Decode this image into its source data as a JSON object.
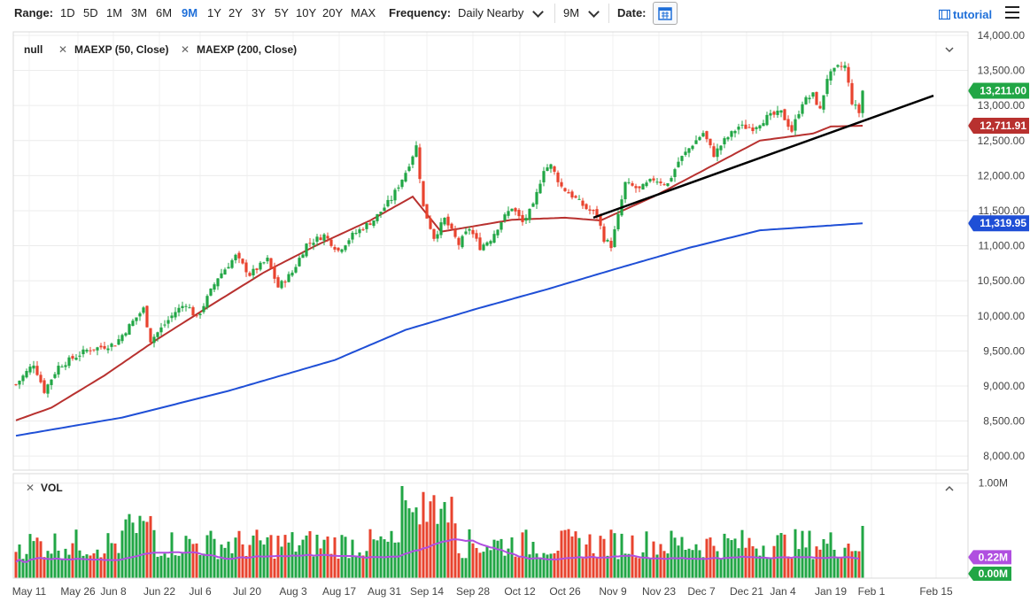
{
  "toolbar": {
    "range_label": "Range:",
    "ranges": [
      "1D",
      "5D",
      "1M",
      "3M",
      "6M",
      "9M",
      "1Y",
      "2Y",
      "3Y",
      "5Y",
      "10Y",
      "20Y",
      "MAX"
    ],
    "active_range": "9M",
    "frequency_label": "Frequency:",
    "frequency_value": "Daily Nearby",
    "period_value": "9M",
    "date_label": "Date:",
    "tutorial_label": "tutorial"
  },
  "legend": {
    "main": "null",
    "ma50": "MAEXP (50, Close)",
    "ma200": "MAEXP (200, Close)",
    "vol": "VOL"
  },
  "colors": {
    "up": "#21a645",
    "down": "#e8432e",
    "ma50": "#b8312f",
    "ma200": "#1f4fd6",
    "trend": "#000000",
    "vol_ma": "#b04fe0",
    "last_price_tag": "#21a645",
    "ma50_tag": "#b8312f",
    "ma200_tag": "#1f4fd6",
    "vol_tag": "#b04fe0",
    "vol_zero_tag": "#21a645"
  },
  "chart_data": {
    "type": "candlestick",
    "y_ticks": [
      "14,000.00",
      "13,500.00",
      "13,000.00",
      "12,500.00",
      "12,000.00",
      "11,500.00",
      "11,000.00",
      "10,500.00",
      "10,000.00",
      "9,500.00",
      "9,000.00",
      "8,500.00",
      "8,000.00"
    ],
    "ylim": [
      7800,
      14050
    ],
    "x_ticks": [
      "May 11",
      "May 26",
      "Jun 8",
      "Jun 22",
      "Jul 6",
      "Jul 20",
      "Aug 3",
      "Aug 17",
      "Aug 31",
      "Sep 14",
      "Sep 28",
      "Oct 12",
      "Oct 26",
      "Nov 9",
      "Nov 23",
      "Dec 7",
      "Dec 21",
      "Jan 4",
      "Jan 19",
      "Feb 1",
      "Feb 15"
    ],
    "price_path": [
      [
        0,
        9020
      ],
      [
        5,
        9320
      ],
      [
        8,
        8930
      ],
      [
        12,
        9280
      ],
      [
        20,
        9510
      ],
      [
        28,
        9600
      ],
      [
        33,
        9920
      ],
      [
        36,
        10100
      ],
      [
        38,
        9650
      ],
      [
        41,
        9820
      ],
      [
        45,
        10060
      ],
      [
        48,
        10180
      ],
      [
        51,
        9960
      ],
      [
        57,
        10550
      ],
      [
        62,
        10850
      ],
      [
        66,
        10590
      ],
      [
        71,
        10800
      ],
      [
        74,
        10410
      ],
      [
        78,
        10620
      ],
      [
        82,
        11020
      ],
      [
        87,
        11150
      ],
      [
        91,
        10930
      ],
      [
        95,
        11150
      ],
      [
        101,
        11370
      ],
      [
        106,
        11670
      ],
      [
        110,
        12050
      ],
      [
        113,
        12420
      ],
      [
        115,
        11550
      ],
      [
        118,
        11120
      ],
      [
        121,
        11380
      ],
      [
        125,
        11020
      ],
      [
        128,
        11250
      ],
      [
        131,
        10980
      ],
      [
        134,
        11100
      ],
      [
        137,
        11350
      ],
      [
        140,
        11550
      ],
      [
        143,
        11330
      ],
      [
        146,
        11560
      ],
      [
        149,
        12100
      ],
      [
        151,
        12140
      ],
      [
        154,
        11840
      ],
      [
        158,
        11670
      ],
      [
        161,
        11530
      ],
      [
        164,
        11440
      ],
      [
        166,
        11100
      ],
      [
        168,
        11000
      ],
      [
        170,
        11420
      ],
      [
        172,
        11890
      ],
      [
        176,
        11800
      ],
      [
        180,
        11950
      ],
      [
        184,
        11880
      ],
      [
        187,
        12200
      ],
      [
        191,
        12450
      ],
      [
        194,
        12610
      ],
      [
        197,
        12300
      ],
      [
        200,
        12500
      ],
      [
        204,
        12700
      ],
      [
        208,
        12680
      ],
      [
        212,
        12830
      ],
      [
        216,
        12900
      ],
      [
        219,
        12640
      ],
      [
        222,
        13050
      ],
      [
        225,
        13150
      ],
      [
        227,
        12930
      ],
      [
        229,
        13400
      ],
      [
        232,
        13540
      ],
      [
        234,
        13560
      ],
      [
        236,
        13050
      ],
      [
        238,
        12900
      ],
      [
        239,
        13211
      ]
    ],
    "last_close": 13211.0,
    "ma50_points": [
      [
        0,
        8510
      ],
      [
        10,
        8690
      ],
      [
        25,
        9150
      ],
      [
        40,
        9670
      ],
      [
        55,
        10150
      ],
      [
        70,
        10620
      ],
      [
        85,
        11010
      ],
      [
        100,
        11360
      ],
      [
        112,
        11700
      ],
      [
        120,
        11200
      ],
      [
        140,
        11370
      ],
      [
        155,
        11400
      ],
      [
        165,
        11360
      ],
      [
        180,
        11700
      ],
      [
        195,
        12100
      ],
      [
        210,
        12500
      ],
      [
        225,
        12600
      ],
      [
        230,
        12700
      ],
      [
        239,
        12711.91
      ]
    ],
    "ma50_last": 12711.91,
    "ma200_points": [
      [
        0,
        8290
      ],
      [
        30,
        8550
      ],
      [
        60,
        8930
      ],
      [
        90,
        9370
      ],
      [
        110,
        9800
      ],
      [
        130,
        10100
      ],
      [
        150,
        10380
      ],
      [
        170,
        10680
      ],
      [
        190,
        10970
      ],
      [
        210,
        11220
      ],
      [
        239,
        11319.95
      ]
    ],
    "ma200_last": 11319.95,
    "trendline": {
      "from": [
        163,
        11400
      ],
      "to": [
        259,
        13140
      ]
    },
    "volume": {
      "y_tick": "1.00M",
      "vol_ma_label": "0.22M",
      "last_label": "0.00M",
      "ymax": 1.1,
      "base": 0.22
    },
    "price_tags": [
      "13,211.00",
      "12,711.91",
      "11,319.95"
    ]
  }
}
